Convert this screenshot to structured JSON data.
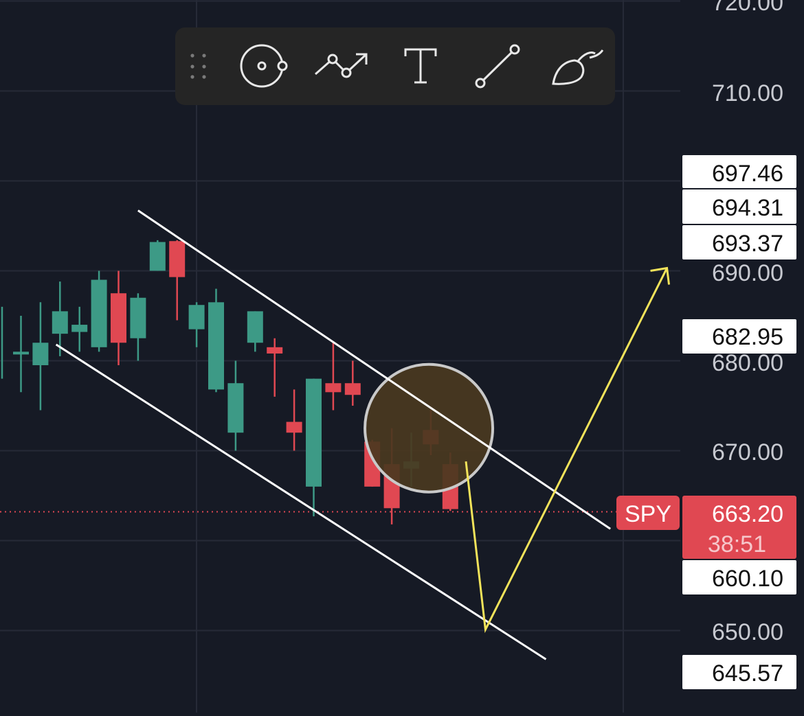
{
  "symbol": "SPY",
  "last_price": "663.20",
  "countdown": "38:51",
  "colors": {
    "background": "#161a25",
    "grid": "#262a37",
    "bull": "#3d9a86",
    "bear": "#e04852",
    "channel": "#ffffff",
    "projection": "#f2e35a",
    "circle_fill": "#4a3820",
    "axis_text": "#c8cad1",
    "price_line": "#e04852"
  },
  "toolbar": {
    "items": [
      {
        "name": "drag-handle-icon",
        "icon": "grip"
      },
      {
        "name": "cursor-tool-icon",
        "icon": "circle-dot"
      },
      {
        "name": "path-tool-icon",
        "icon": "zigzag-arrow"
      },
      {
        "name": "text-tool-icon",
        "icon": "text-t"
      },
      {
        "name": "trend-line-tool-icon",
        "icon": "line"
      },
      {
        "name": "brush-tool-icon",
        "icon": "brush"
      }
    ]
  },
  "chart_data": {
    "type": "candlestick",
    "title": "",
    "xlabel": "",
    "ylabel": "",
    "ylim": [
      645,
      720
    ],
    "y_ticks": [
      "720.00",
      "710.00",
      "690.00",
      "680.00",
      "670.00",
      "650.00"
    ],
    "price_labels": [
      "697.46",
      "694.31",
      "693.37",
      "682.95",
      "660.10",
      "645.57"
    ],
    "grid": true,
    "candles": [
      {
        "o": 681.0,
        "h": 685.0,
        "l": 676.5,
        "c": 681.0
      },
      {
        "o": 679.5,
        "h": 686.5,
        "l": 674.5,
        "c": 682.0
      },
      {
        "o": 683.0,
        "h": 688.8,
        "l": 680.5,
        "c": 685.5
      },
      {
        "o": 683.2,
        "h": 686.0,
        "l": 681.0,
        "c": 684.0
      },
      {
        "o": 681.5,
        "h": 690.0,
        "l": 681.0,
        "c": 689.0
      },
      {
        "o": 687.5,
        "h": 690.0,
        "l": 679.5,
        "c": 682.0
      },
      {
        "o": 682.5,
        "h": 687.5,
        "l": 680.0,
        "c": 687.0
      },
      {
        "o": 690.0,
        "h": 693.4,
        "l": 690.0,
        "c": 693.2
      },
      {
        "o": 693.3,
        "h": 693.4,
        "l": 684.5,
        "c": 689.3
      },
      {
        "o": 683.5,
        "h": 686.5,
        "l": 681.5,
        "c": 686.2
      },
      {
        "o": 676.8,
        "h": 688.0,
        "l": 676.5,
        "c": 686.5
      },
      {
        "o": 672.0,
        "h": 680.0,
        "l": 670.0,
        "c": 677.5
      },
      {
        "o": 682.0,
        "h": 685.5,
        "l": 681.0,
        "c": 685.5
      },
      {
        "o": 681.5,
        "h": 682.5,
        "l": 676.0,
        "c": 680.8
      },
      {
        "o": 673.2,
        "h": 676.8,
        "l": 670.0,
        "c": 672.0
      },
      {
        "o": 666.0,
        "h": 678.0,
        "l": 662.7,
        "c": 678.0
      },
      {
        "o": 677.5,
        "h": 682.0,
        "l": 674.5,
        "c": 676.5
      },
      {
        "o": 677.5,
        "h": 680.0,
        "l": 675.0,
        "c": 676.2
      },
      {
        "o": 671.0,
        "h": 671.2,
        "l": 666.0,
        "c": 666.0
      },
      {
        "o": 668.5,
        "h": 672.5,
        "l": 661.8,
        "c": 663.6
      },
      {
        "o": 668.0,
        "h": 672.0,
        "l": 666.0,
        "c": 668.8
      },
      {
        "o": 672.3,
        "h": 674.5,
        "l": 669.5,
        "c": 670.7
      },
      {
        "o": 668.5,
        "h": 669.8,
        "l": 663.3,
        "c": 663.5
      }
    ],
    "annotations": {
      "channel_upper": [
        {
          "x": 6,
          "y": 696.7
        },
        {
          "x": 30.2,
          "y": 661.3
        }
      ],
      "channel_lower": [
        {
          "x": 1.8,
          "y": 681.8
        },
        {
          "x": 26.9,
          "y": 646.8
        }
      ],
      "projection": [
        {
          "x": 22.8,
          "y": 668.8
        },
        {
          "x": 23.8,
          "y": 650.1
        },
        {
          "x": 33.1,
          "y": 690.3
        }
      ],
      "highlight_circle_center": {
        "x": 20.9,
        "y": 672.5
      }
    }
  }
}
